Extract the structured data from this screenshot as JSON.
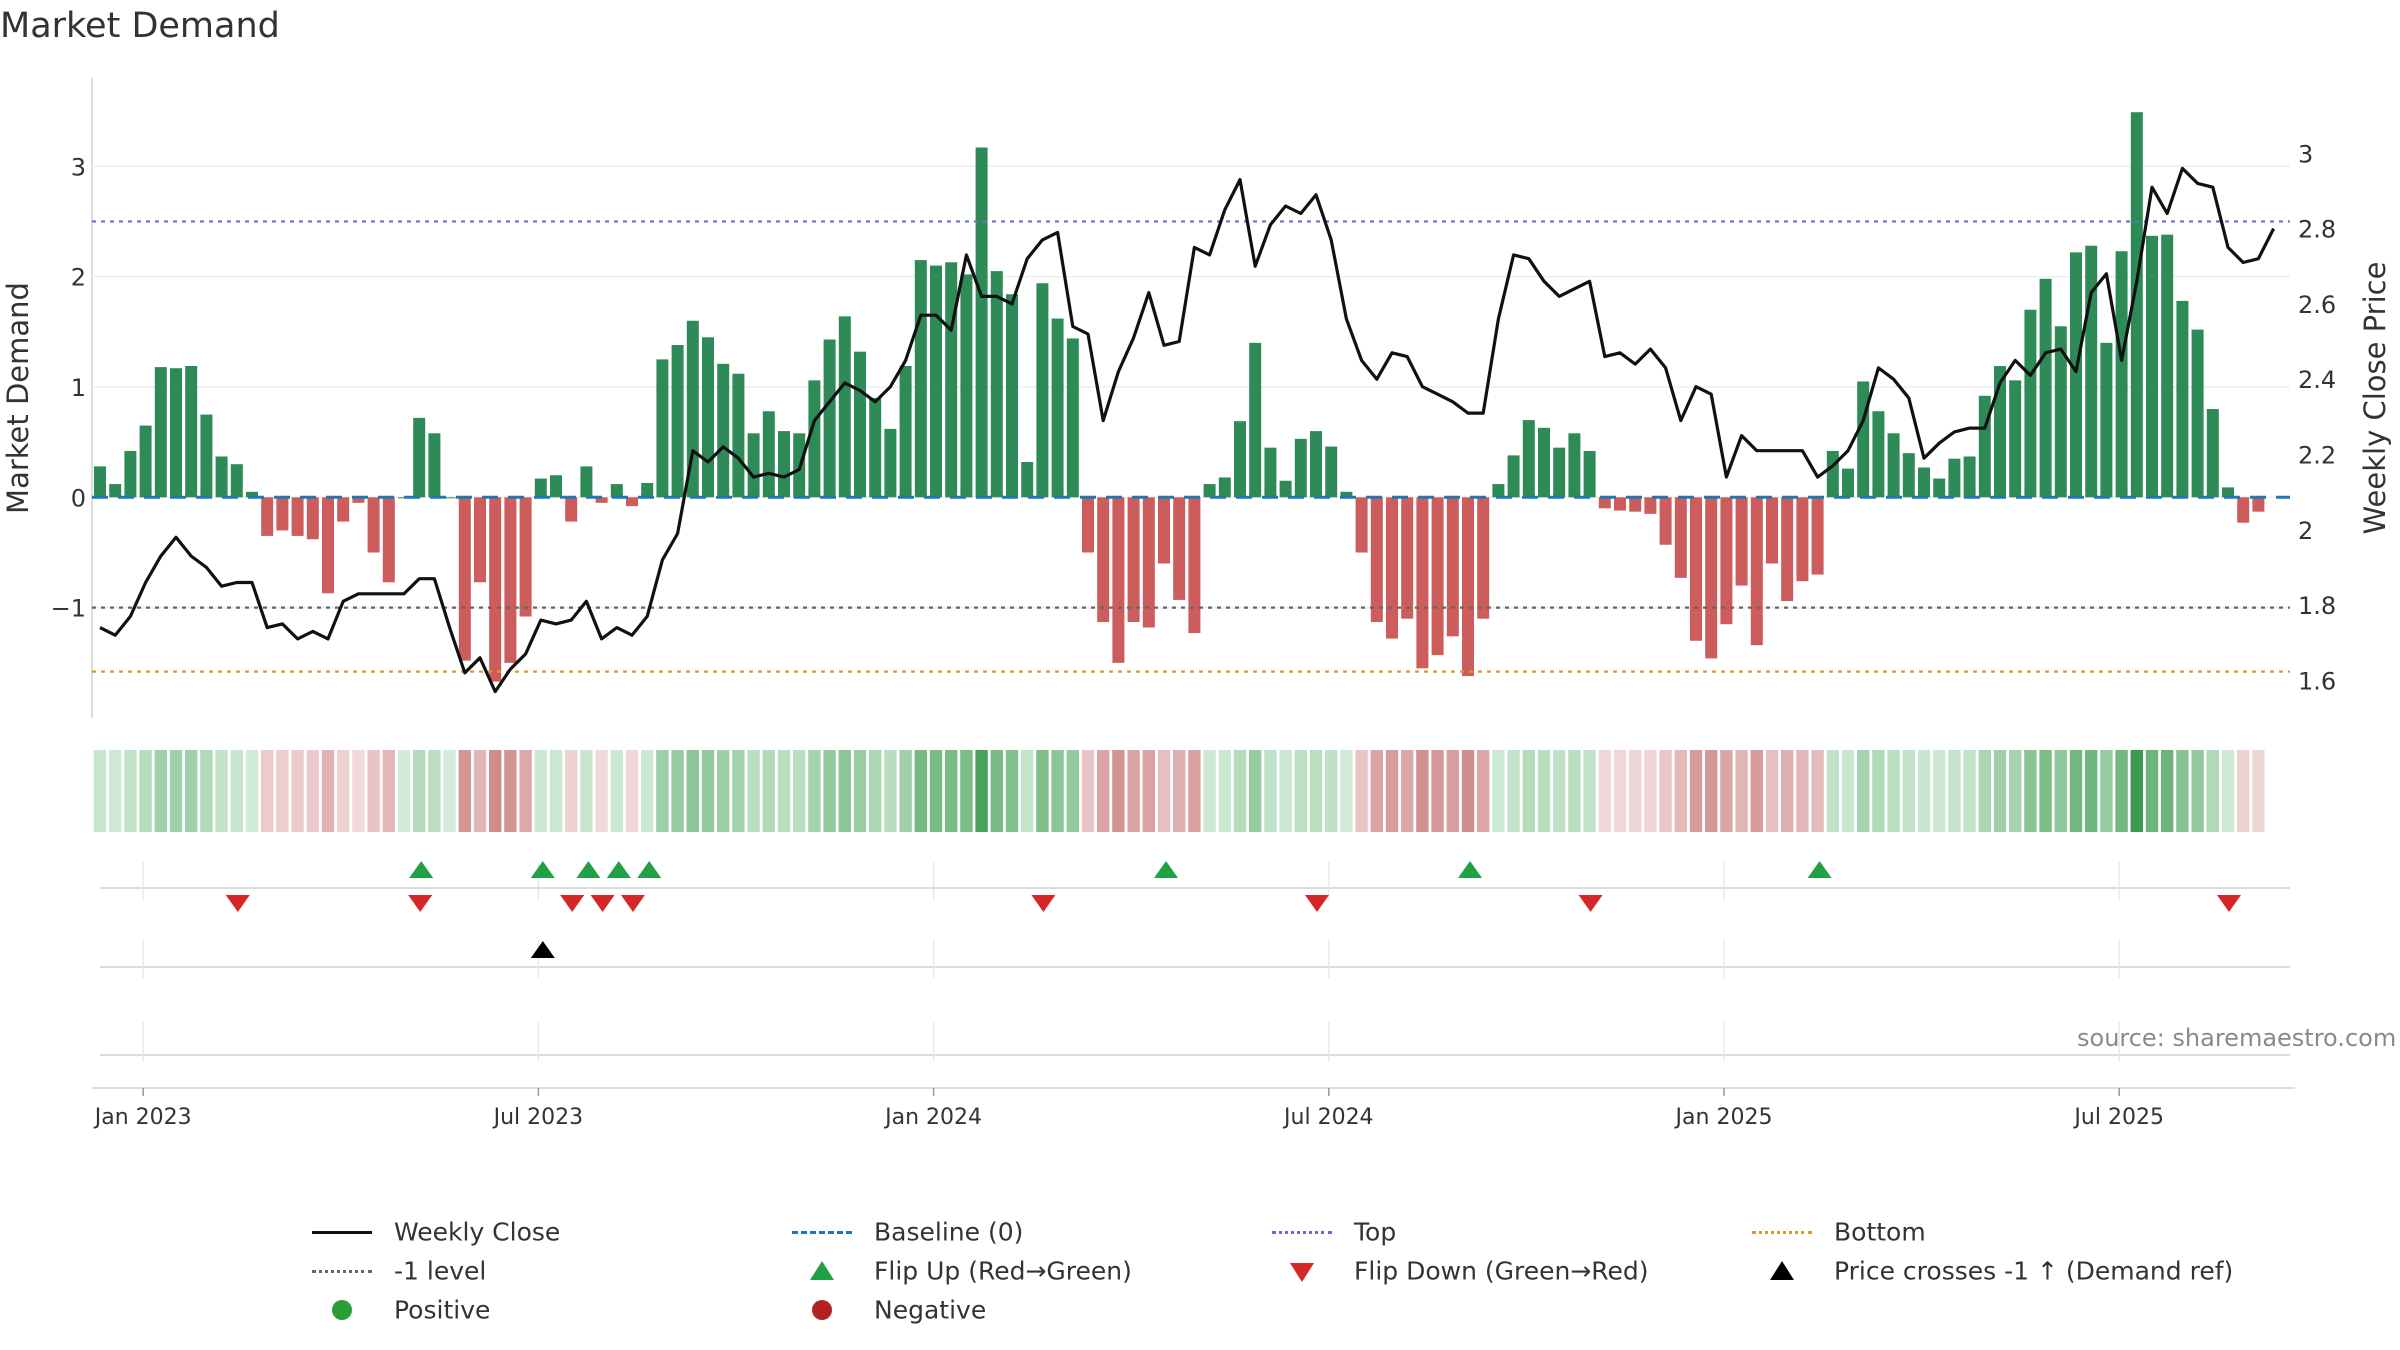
{
  "title": "Market Demand",
  "source": "source: sharemaestro.com",
  "colors": {
    "positive": "#2e8b57",
    "negative": "#cd5c5c",
    "close": "#111111",
    "baseline": "#1f77b4",
    "top": "#6a6ad8",
    "bottom": "#d99a2b",
    "minus1": "#666666",
    "flip_up": "#22a045",
    "flip_down": "#d62728",
    "cross": "#000000",
    "pos_dot": "#2a9d34",
    "neg_dot": "#b22222"
  },
  "chart_data": {
    "type": "bar+line",
    "title": "Market Demand",
    "ylabel": "Market Demand",
    "y2label": "Weekly Close Price",
    "ylim": [
      -2.0,
      3.8
    ],
    "y2lim": [
      1.5,
      3.2
    ],
    "yticks": [
      -1,
      0,
      1,
      2,
      3
    ],
    "yticklabels": [
      "−1",
      "0",
      "1",
      "2",
      "3"
    ],
    "y2ticks": [
      1.6,
      1.8,
      2.0,
      2.2,
      2.4,
      2.6,
      2.8,
      3.0
    ],
    "y2ticklabels": [
      "1.6",
      "1.8",
      "2",
      "2.2",
      "2.4",
      "2.6",
      "2.8",
      "3"
    ],
    "xticklabels": [
      "Jan 2023",
      "Jul 2023",
      "Jan 2024",
      "Jul 2024",
      "Jan 2025",
      "Jul 2025"
    ],
    "xtick_weeks": [
      1,
      27,
      53,
      79,
      105,
      131
    ],
    "reference_lines": {
      "baseline": 0,
      "top": 2.5,
      "minus1": -1,
      "bottom": -1.58
    },
    "demand": [
      0.28,
      0.12,
      0.42,
      0.65,
      1.18,
      1.17,
      1.19,
      0.75,
      0.37,
      0.3,
      0.05,
      -0.35,
      -0.3,
      -0.35,
      -0.38,
      -0.87,
      -0.22,
      -0.05,
      -0.5,
      -0.77,
      0.0,
      0.72,
      0.58,
      0.0,
      -1.48,
      -0.77,
      -1.67,
      -1.5,
      -1.08,
      0.17,
      0.2,
      -0.22,
      0.28,
      -0.05,
      0.12,
      -0.08,
      0.13,
      1.25,
      1.38,
      1.6,
      1.45,
      1.21,
      1.12,
      0.58,
      0.78,
      0.6,
      0.58,
      1.06,
      1.43,
      1.64,
      1.32,
      0.9,
      0.62,
      1.19,
      2.15,
      2.1,
      2.13,
      2.02,
      3.17,
      2.05,
      1.84,
      0.32,
      1.94,
      1.62,
      1.44,
      -0.5,
      -1.13,
      -1.5,
      -1.13,
      -1.18,
      -0.6,
      -0.93,
      -1.23,
      0.12,
      0.18,
      0.69,
      1.4,
      0.45,
      0.15,
      0.53,
      0.6,
      0.46,
      0.05,
      -0.5,
      -1.13,
      -1.28,
      -1.1,
      -1.55,
      -1.43,
      -1.26,
      -1.62,
      -1.1,
      0.12,
      0.38,
      0.7,
      0.63,
      0.45,
      0.58,
      0.42,
      -0.1,
      -0.12,
      -0.13,
      -0.15,
      -0.43,
      -0.73,
      -1.3,
      -1.46,
      -1.15,
      -0.8,
      -1.34,
      -0.6,
      -0.94,
      -0.76,
      -0.7,
      0.42,
      0.26,
      1.05,
      0.78,
      0.58,
      0.4,
      0.27,
      0.17,
      0.35,
      0.37,
      0.92,
      1.19,
      1.06,
      1.7,
      1.98,
      1.55,
      2.22,
      2.28,
      1.4,
      2.23,
      3.49,
      2.37,
      2.38,
      1.78,
      1.52,
      0.8,
      0.09,
      -0.23,
      -0.13
    ],
    "close": [
      1.74,
      1.72,
      1.77,
      1.86,
      1.93,
      1.98,
      1.93,
      1.9,
      1.85,
      1.86,
      1.86,
      1.74,
      1.75,
      1.71,
      1.73,
      1.71,
      1.81,
      1.83,
      1.83,
      1.83,
      1.83,
      1.87,
      1.87,
      1.74,
      1.62,
      1.66,
      1.57,
      1.63,
      1.67,
      1.76,
      1.75,
      1.76,
      1.81,
      1.71,
      1.74,
      1.72,
      1.77,
      1.92,
      1.99,
      2.21,
      2.18,
      2.22,
      2.19,
      2.14,
      2.15,
      2.14,
      2.16,
      2.29,
      2.34,
      2.39,
      2.37,
      2.34,
      2.38,
      2.45,
      2.57,
      2.57,
      2.53,
      2.73,
      2.62,
      2.62,
      2.6,
      2.72,
      2.77,
      2.79,
      2.54,
      2.52,
      2.29,
      2.42,
      2.51,
      2.63,
      2.49,
      2.5,
      2.75,
      2.73,
      2.85,
      2.93,
      2.7,
      2.81,
      2.86,
      2.84,
      2.89,
      2.77,
      2.56,
      2.45,
      2.4,
      2.47,
      2.46,
      2.38,
      2.36,
      2.34,
      2.31,
      2.31,
      2.56,
      2.73,
      2.72,
      2.66,
      2.62,
      2.64,
      2.66,
      2.46,
      2.47,
      2.44,
      2.48,
      2.43,
      2.29,
      2.38,
      2.36,
      2.14,
      2.25,
      2.21,
      2.21,
      2.21,
      2.21,
      2.14,
      2.17,
      2.21,
      2.29,
      2.43,
      2.4,
      2.35,
      2.19,
      2.23,
      2.26,
      2.27,
      2.27,
      2.39,
      2.45,
      2.41,
      2.47,
      2.48,
      2.42,
      2.63,
      2.68,
      2.45,
      2.66,
      2.91,
      2.84,
      2.96,
      2.92,
      2.91,
      2.75,
      2.71,
      2.72,
      2.8
    ],
    "heat_strip": "weekly color strip of demand strength (green positive, red negative)",
    "flip_up_weeks": [
      21,
      29,
      32,
      34,
      36,
      70,
      90,
      113
    ],
    "flip_down_weeks": [
      9,
      21,
      31,
      33,
      35,
      62,
      80,
      98,
      140
    ],
    "price_cross_weeks": [
      29
    ]
  },
  "legend": [
    {
      "label": "Weekly Close",
      "symbol": "line-solid-black"
    },
    {
      "label": "Baseline (0)",
      "symbol": "line-dashed-blue"
    },
    {
      "label": "Top",
      "symbol": "line-dotted-purple"
    },
    {
      "label": "Bottom",
      "symbol": "line-dotted-orange"
    },
    {
      "label": "-1 level",
      "symbol": "line-dotted-gray"
    },
    {
      "label": "Flip Up (Red→Green)",
      "symbol": "triangle-up-green"
    },
    {
      "label": "Flip Down (Green→Red)",
      "symbol": "triangle-down-red"
    },
    {
      "label": "Price crosses -1 ↑ (Demand ref)",
      "symbol": "triangle-up-black"
    },
    {
      "label": "Positive",
      "symbol": "dot-green"
    },
    {
      "label": "Negative",
      "symbol": "dot-red"
    }
  ]
}
